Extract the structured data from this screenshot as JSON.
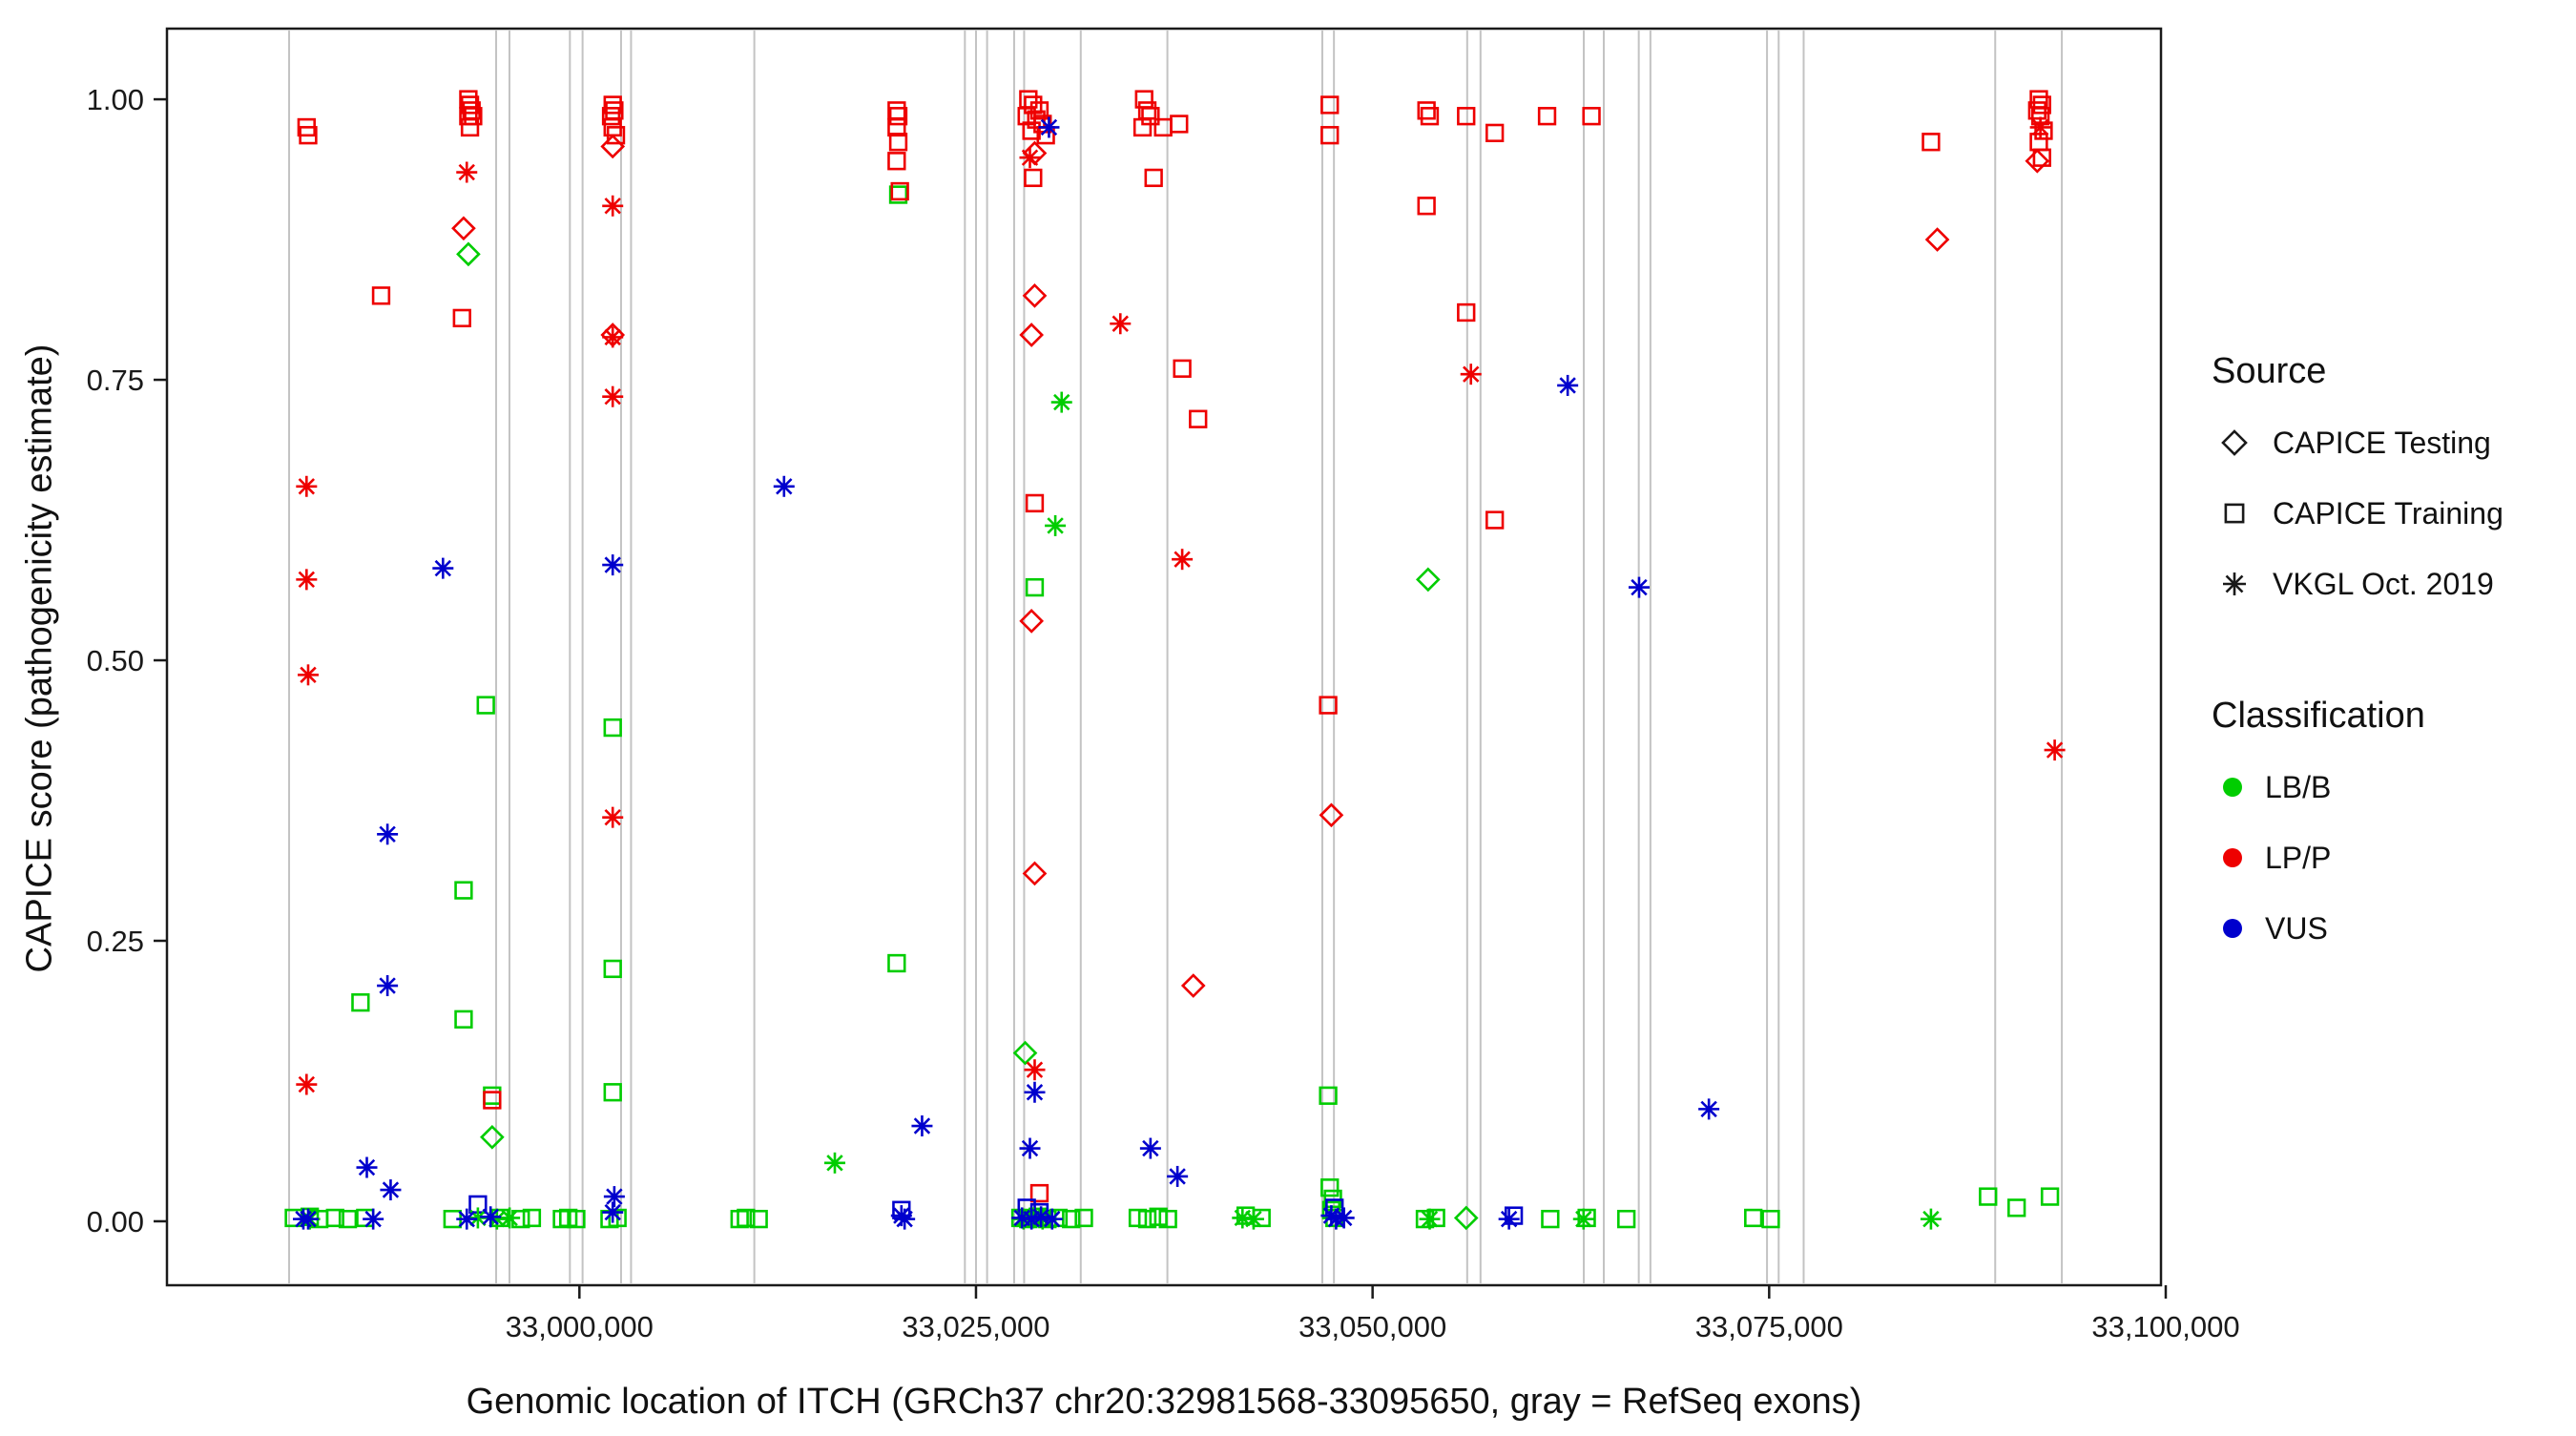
{
  "chart_data": {
    "type": "scatter",
    "title": "",
    "xlabel": "Genomic location of ITCH (GRCh37 chr20:32981568-33095650, gray = RefSeq exons)",
    "ylabel": "CAPICE score (pathogenicity estimate)",
    "xlim": [
      32974000,
      33099700
    ],
    "ylim": [
      -0.057,
      1.063
    ],
    "grid": false,
    "x_ticks": [
      {
        "value": 33000000,
        "label": "33,000,000"
      },
      {
        "value": 33025000,
        "label": "33,025,000"
      },
      {
        "value": 33050000,
        "label": "33,050,000"
      },
      {
        "value": 33075000,
        "label": "33,075,000"
      },
      {
        "value": 33100000,
        "label": "33,100,000"
      }
    ],
    "y_ticks": [
      {
        "value": 0,
        "label": "0.00"
      },
      {
        "value": 0.25,
        "label": "0.25"
      },
      {
        "value": 0.5,
        "label": "0.50"
      },
      {
        "value": 0.75,
        "label": "0.75"
      },
      {
        "value": 1,
        "label": "1.00"
      }
    ],
    "exon_note": "gray vertical lines = RefSeq exons",
    "exon_positions": [
      32981700,
      32994750,
      32995590,
      32999400,
      33000200,
      33002625,
      33003255,
      33011025,
      33024300,
      33025000,
      33025700,
      33027405,
      33028035,
      33031605,
      33037065,
      33046830,
      33047565,
      33055965,
      33056805,
      33063315,
      33064575,
      33066780,
      33067515,
      33074865,
      33075600,
      33077175,
      33089250,
      33093450
    ],
    "legend": {
      "position": "right",
      "source_title": "Source",
      "sources": [
        {
          "label": "CAPICE Testing",
          "marker": "diamond"
        },
        {
          "label": "CAPICE Training",
          "marker": "square"
        },
        {
          "label": "VKGL Oct. 2019",
          "marker": "asterisk"
        }
      ],
      "classification_title": "Classification",
      "classifications": [
        {
          "label": "LB/B",
          "color": "#00CD00"
        },
        {
          "label": "LP/P",
          "color": "#EE0000"
        },
        {
          "label": "VUS",
          "color": "#0000CD"
        }
      ]
    },
    "series": [
      {
        "source": "CAPICE Training",
        "classification": "LB/B",
        "marker": "square",
        "color": "#00CD00",
        "points": [
          [
            32982000,
            0.003
          ],
          [
            32983000,
            0.004
          ],
          [
            32983600,
            0.002
          ],
          [
            32984600,
            0.003
          ],
          [
            32985400,
            0.002
          ],
          [
            32986200,
            0.195
          ],
          [
            32986500,
            0.003
          ],
          [
            32992000,
            0.002
          ],
          [
            32992700,
            0.295
          ],
          [
            32992700,
            0.18
          ],
          [
            32994100,
            0.46
          ],
          [
            32994500,
            0.112
          ],
          [
            32995000,
            0.003
          ],
          [
            32996300,
            0.002
          ],
          [
            32997000,
            0.003
          ],
          [
            32998900,
            0.002
          ],
          [
            32999300,
            0.003
          ],
          [
            32999800,
            0.002
          ],
          [
            33001900,
            0.002
          ],
          [
            33002100,
            0.44
          ],
          [
            33002100,
            0.225
          ],
          [
            33002100,
            0.115
          ],
          [
            33002400,
            0.003
          ],
          [
            33010100,
            0.002
          ],
          [
            33010500,
            0.003
          ],
          [
            33011300,
            0.002
          ],
          [
            33020000,
            0.23
          ],
          [
            33020100,
            0.915
          ],
          [
            33027800,
            0.003
          ],
          [
            33028300,
            0.002
          ],
          [
            33028700,
            0.565
          ],
          [
            33028900,
            0.004
          ],
          [
            33029500,
            0.002
          ],
          [
            33030200,
            0.003
          ],
          [
            33031000,
            0.002
          ],
          [
            33031800,
            0.003
          ],
          [
            33035200,
            0.003
          ],
          [
            33035800,
            0.002
          ],
          [
            33036500,
            0.004
          ],
          [
            33037100,
            0.002
          ],
          [
            33042000,
            0.005
          ],
          [
            33043000,
            0.003
          ],
          [
            33047200,
            0.112
          ],
          [
            33047300,
            0.03
          ],
          [
            33047500,
            0.02
          ],
          [
            33047400,
            0.01
          ],
          [
            33047600,
            0.003
          ],
          [
            33053300,
            0.002
          ],
          [
            33054000,
            0.003
          ],
          [
            33061200,
            0.002
          ],
          [
            33063500,
            0.003
          ],
          [
            33066000,
            0.002
          ],
          [
            33074000,
            0.003
          ],
          [
            33075100,
            0.002
          ],
          [
            33088800,
            0.022
          ],
          [
            33090600,
            0.012
          ],
          [
            33092700,
            0.022
          ]
        ]
      },
      {
        "source": "CAPICE Training",
        "classification": "LP/P",
        "marker": "square",
        "color": "#EE0000",
        "points": [
          [
            32982800,
            0.975
          ],
          [
            32982900,
            0.968
          ],
          [
            32987500,
            0.825
          ],
          [
            32992600,
            0.805
          ],
          [
            32993000,
            1.0
          ],
          [
            32993100,
            0.995
          ],
          [
            32993200,
            0.99
          ],
          [
            32993000,
            0.985
          ],
          [
            32993300,
            0.985
          ],
          [
            32993100,
            0.975
          ],
          [
            32994500,
            0.108
          ],
          [
            33002000,
            0.985
          ],
          [
            33002100,
            0.995
          ],
          [
            33002100,
            0.975
          ],
          [
            33002200,
            0.99
          ],
          [
            33002300,
            0.968
          ],
          [
            33020000,
            0.99
          ],
          [
            33020100,
            0.985
          ],
          [
            33020000,
            0.975
          ],
          [
            33020100,
            0.962
          ],
          [
            33020000,
            0.945
          ],
          [
            33020200,
            0.918
          ],
          [
            33028200,
            0.985
          ],
          [
            33028300,
            1.0
          ],
          [
            33028500,
            0.972
          ],
          [
            33028600,
            0.995
          ],
          [
            33028600,
            0.93
          ],
          [
            33028700,
            0.64
          ],
          [
            33028800,
            0.982
          ],
          [
            33029000,
            0.99
          ],
          [
            33029000,
            0.025
          ],
          [
            33029200,
            0.978
          ],
          [
            33029400,
            0.968
          ],
          [
            33035500,
            0.975
          ],
          [
            33035600,
            1.0
          ],
          [
            33035800,
            0.99
          ],
          [
            33036000,
            0.985
          ],
          [
            33036200,
            0.93
          ],
          [
            33036800,
            0.975
          ],
          [
            33037800,
            0.978
          ],
          [
            33038000,
            0.76
          ],
          [
            33039000,
            0.715
          ],
          [
            33047300,
            0.995
          ],
          [
            33047300,
            0.968
          ],
          [
            33047200,
            0.46
          ],
          [
            33053400,
            0.99
          ],
          [
            33053600,
            0.985
          ],
          [
            33053400,
            0.905
          ],
          [
            33055900,
            0.985
          ],
          [
            33055900,
            0.81
          ],
          [
            33057700,
            0.97
          ],
          [
            33057700,
            0.625
          ],
          [
            33061000,
            0.985
          ],
          [
            33063800,
            0.985
          ],
          [
            33085200,
            0.962
          ],
          [
            33091900,
            0.99
          ],
          [
            33092000,
            1.0
          ],
          [
            33092000,
            0.962
          ],
          [
            33092100,
            0.985
          ],
          [
            33092200,
            0.995
          ],
          [
            33092200,
            0.948
          ],
          [
            33092300,
            0.972
          ]
        ]
      },
      {
        "source": "CAPICE Training",
        "classification": "VUS",
        "marker": "square",
        "color": "#0000CD",
        "points": [
          [
            32993600,
            0.015
          ],
          [
            33020300,
            0.01
          ],
          [
            33028200,
            0.012
          ],
          [
            33029000,
            0.008
          ],
          [
            33047600,
            0.012
          ],
          [
            33058900,
            0.005
          ]
        ]
      },
      {
        "source": "CAPICE Testing",
        "classification": "LB/B",
        "marker": "diamond",
        "color": "#00CD00",
        "points": [
          [
            32993000,
            0.862
          ],
          [
            32994500,
            0.075
          ],
          [
            33028100,
            0.15
          ],
          [
            33053500,
            0.572
          ],
          [
            33055900,
            0.003
          ]
        ]
      },
      {
        "source": "CAPICE Testing",
        "classification": "LP/P",
        "marker": "diamond",
        "color": "#EE0000",
        "points": [
          [
            32992700,
            0.885
          ],
          [
            33002100,
            0.958
          ],
          [
            33002100,
            0.79
          ],
          [
            33028700,
            0.952
          ],
          [
            33028700,
            0.825
          ],
          [
            33028500,
            0.79
          ],
          [
            33028500,
            0.535
          ],
          [
            33028700,
            0.31
          ],
          [
            33038700,
            0.21
          ],
          [
            33047400,
            0.362
          ],
          [
            33085600,
            0.875
          ],
          [
            33091900,
            0.945
          ]
        ]
      },
      {
        "source": "VKGL Oct. 2019",
        "classification": "LB/B",
        "marker": "asterisk",
        "color": "#00CD00",
        "points": [
          [
            32983000,
            0.002
          ],
          [
            32993600,
            0.003
          ],
          [
            32994800,
            0.002
          ],
          [
            32995600,
            0.003
          ],
          [
            33016100,
            0.052
          ],
          [
            33028000,
            0.002
          ],
          [
            33028600,
            0.003
          ],
          [
            33029200,
            0.002
          ],
          [
            33030000,
            0.62
          ],
          [
            33030400,
            0.73
          ],
          [
            33041800,
            0.003
          ],
          [
            33042500,
            0.002
          ],
          [
            33053600,
            0.002
          ],
          [
            33063300,
            0.002
          ],
          [
            33085200,
            0.002
          ]
        ]
      },
      {
        "source": "VKGL Oct. 2019",
        "classification": "LP/P",
        "marker": "asterisk",
        "color": "#EE0000",
        "points": [
          [
            32982800,
            0.655
          ],
          [
            32982800,
            0.572
          ],
          [
            32982900,
            0.487
          ],
          [
            32982800,
            0.122
          ],
          [
            32992900,
            0.935
          ],
          [
            33002100,
            0.905
          ],
          [
            33002100,
            0.788
          ],
          [
            33002100,
            0.735
          ],
          [
            33002100,
            0.36
          ],
          [
            33028400,
            0.948
          ],
          [
            33028700,
            0.135
          ],
          [
            33034100,
            0.8
          ],
          [
            33038000,
            0.59
          ],
          [
            33056200,
            0.755
          ],
          [
            33092100,
            0.975
          ],
          [
            33093000,
            0.42
          ]
        ]
      },
      {
        "source": "VKGL Oct. 2019",
        "classification": "VUS",
        "marker": "asterisk",
        "color": "#0000CD",
        "points": [
          [
            32982600,
            0.002
          ],
          [
            32982900,
            0.002
          ],
          [
            32986600,
            0.048
          ],
          [
            32987000,
            0.002
          ],
          [
            32987900,
            0.345
          ],
          [
            32987900,
            0.21
          ],
          [
            32988100,
            0.028
          ],
          [
            32991400,
            0.582
          ],
          [
            32992900,
            0.002
          ],
          [
            32994400,
            0.004
          ],
          [
            33002100,
            0.585
          ],
          [
            33002100,
            0.008
          ],
          [
            33002200,
            0.022
          ],
          [
            33012900,
            0.655
          ],
          [
            33020300,
            0.005
          ],
          [
            33020500,
            0.002
          ],
          [
            33021600,
            0.085
          ],
          [
            33027900,
            0.003
          ],
          [
            33028400,
            0.065
          ],
          [
            33028500,
            0.002
          ],
          [
            33028700,
            0.115
          ],
          [
            33029100,
            0.004
          ],
          [
            33029600,
            0.975
          ],
          [
            33029800,
            0.002
          ],
          [
            33036000,
            0.065
          ],
          [
            33037700,
            0.04
          ],
          [
            33047400,
            0.005
          ],
          [
            33047700,
            0.002
          ],
          [
            33048200,
            0.003
          ],
          [
            33058600,
            0.002
          ],
          [
            33062300,
            0.745
          ],
          [
            33066800,
            0.565
          ],
          [
            33071200,
            0.1
          ]
        ]
      }
    ]
  },
  "colors": {
    "lb_b": "#00CD00",
    "lp_p": "#EE0000",
    "vus": "#0000CD",
    "exon_line": "#C3C3C3",
    "panel_border": "#1A1A1A",
    "axis_text": "#1A1A1A",
    "legend_marker": "#1A1A1A",
    "background": "#FFFFFF"
  }
}
